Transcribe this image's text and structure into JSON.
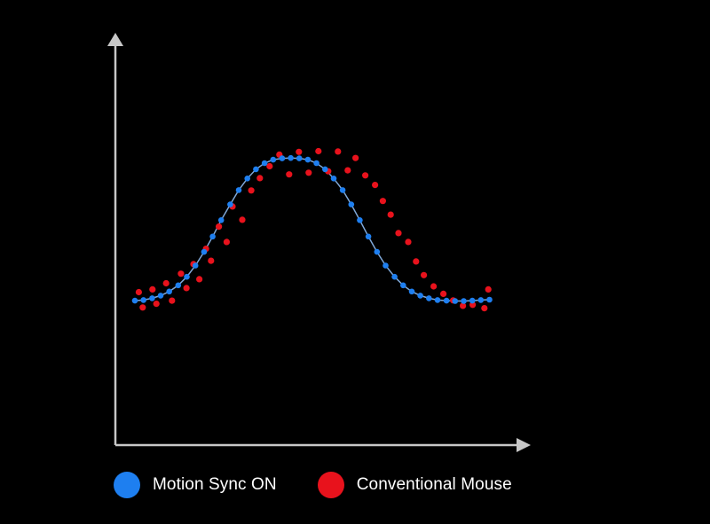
{
  "chart_data": {
    "type": "scatter",
    "title": "",
    "xlabel": "",
    "ylabel": "",
    "xlim": [
      0,
      100
    ],
    "ylim": [
      0,
      100
    ],
    "grid": false,
    "legend_position": "bottom-left",
    "axis_color": "#c8c8c8",
    "curve_color": "#7fa8d8",
    "series": [
      {
        "name": "Motion Sync ON",
        "color": "#1e7ff0",
        "x": [
          5.0,
          7.2,
          9.4,
          11.6,
          13.8,
          16.1,
          18.3,
          20.5,
          22.7,
          24.9,
          27.1,
          29.4,
          31.6,
          33.8,
          36.0,
          38.2,
          40.4,
          42.7,
          44.9,
          47.1,
          49.3,
          51.5,
          53.7,
          55.9,
          58.2,
          60.4,
          62.6,
          64.8,
          67.0,
          69.2,
          71.5,
          73.7,
          75.9,
          78.1,
          80.3,
          82.5,
          84.8,
          87.0,
          89.2,
          91.4,
          93.6,
          95.8
        ],
        "y": [
          42.3,
          42.5,
          43.0,
          43.8,
          45.0,
          46.8,
          49.3,
          52.6,
          56.6,
          61.1,
          65.9,
          70.5,
          74.7,
          78.1,
          80.8,
          82.6,
          83.6,
          84.0,
          84.1,
          84.0,
          83.6,
          82.6,
          80.8,
          78.1,
          74.7,
          70.5,
          65.9,
          61.1,
          56.6,
          52.6,
          49.3,
          46.8,
          45.0,
          43.8,
          43.0,
          42.5,
          42.3,
          42.2,
          42.2,
          42.3,
          42.5,
          42.6
        ]
      },
      {
        "name": "Conventional Mouse",
        "color": "#e8121c",
        "x": [
          6.0,
          7.0,
          9.5,
          10.5,
          13.0,
          14.5,
          16.8,
          18.2,
          20.0,
          21.5,
          23.2,
          24.5,
          26.5,
          28.5,
          30.0,
          32.5,
          34.8,
          37.0,
          39.5,
          42.0,
          44.5,
          47.0,
          49.5,
          52.0,
          54.5,
          57.0,
          59.5,
          61.5,
          64.0,
          66.5,
          68.5,
          70.5,
          72.5,
          75.0,
          77.0,
          79.0,
          81.5,
          84.0,
          86.5,
          89.0,
          91.5,
          94.5,
          95.5
        ],
        "y": [
          44.8,
          40.3,
          45.6,
          41.4,
          47.4,
          42.3,
          50.2,
          46.0,
          53.0,
          48.6,
          57.5,
          54.0,
          64.0,
          59.5,
          69.9,
          66.0,
          74.6,
          78.2,
          81.7,
          85.1,
          79.3,
          85.9,
          79.8,
          86.1,
          80.2,
          86.0,
          80.5,
          84.1,
          79.0,
          76.2,
          71.5,
          67.5,
          62.1,
          59.5,
          53.8,
          49.8,
          46.5,
          44.3,
          42.4,
          40.8,
          41.1,
          40.1,
          45.6
        ]
      }
    ]
  }
}
